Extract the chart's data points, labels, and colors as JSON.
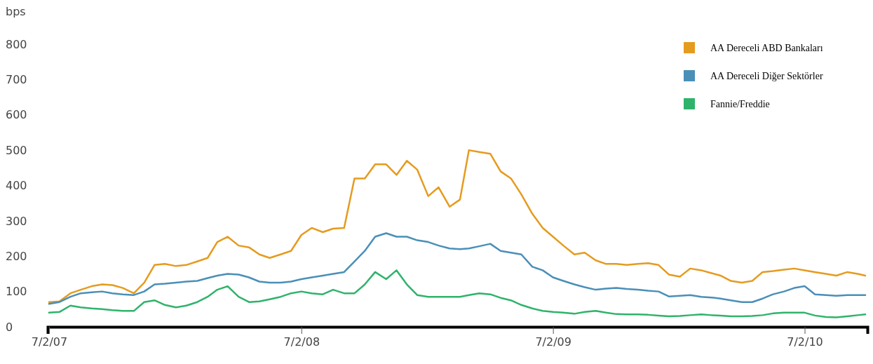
{
  "chart_data": {
    "type": "line",
    "ylabel": "bps",
    "x": [
      "2007-07-02",
      "2007-07-17",
      "2007-08-02",
      "2007-08-17",
      "2007-09-02",
      "2007-09-17",
      "2007-10-02",
      "2007-10-17",
      "2007-11-02",
      "2007-11-17",
      "2007-12-02",
      "2007-12-17",
      "2008-01-02",
      "2008-01-17",
      "2008-02-02",
      "2008-02-17",
      "2008-03-02",
      "2008-03-17",
      "2008-04-02",
      "2008-04-17",
      "2008-05-02",
      "2008-05-17",
      "2008-06-02",
      "2008-06-17",
      "2008-07-02",
      "2008-07-17",
      "2008-08-02",
      "2008-08-17",
      "2008-09-02",
      "2008-09-17",
      "2008-10-02",
      "2008-10-17",
      "2008-11-02",
      "2008-11-17",
      "2008-12-02",
      "2008-12-17",
      "2009-01-02",
      "2009-01-17",
      "2009-02-02",
      "2009-02-17",
      "2009-03-02",
      "2009-03-17",
      "2009-04-02",
      "2009-04-17",
      "2009-05-02",
      "2009-05-17",
      "2009-06-02",
      "2009-06-17",
      "2009-07-02",
      "2009-07-17",
      "2009-08-02",
      "2009-08-17",
      "2009-09-02",
      "2009-09-17",
      "2009-10-02",
      "2009-10-17",
      "2009-11-02",
      "2009-11-17",
      "2009-12-02",
      "2009-12-17",
      "2010-01-02",
      "2010-01-17",
      "2010-02-02",
      "2010-02-17",
      "2010-03-02",
      "2010-03-17",
      "2010-04-02",
      "2010-04-17",
      "2010-05-02",
      "2010-05-17",
      "2010-06-02",
      "2010-06-17",
      "2010-07-02",
      "2010-07-17",
      "2010-08-02",
      "2010-08-17",
      "2010-09-02",
      "2010-09-17",
      "2010-09-28"
    ],
    "series": [
      {
        "name": "AA Dereceli ABD Bankaları",
        "color": "#e59b1e",
        "values": [
          70,
          72,
          95,
          105,
          115,
          120,
          118,
          110,
          95,
          125,
          175,
          178,
          172,
          175,
          185,
          195,
          240,
          255,
          230,
          225,
          205,
          195,
          205,
          215,
          260,
          280,
          268,
          278,
          280,
          420,
          420,
          460,
          460,
          430,
          470,
          445,
          370,
          395,
          340,
          360,
          500,
          495,
          490,
          440,
          420,
          375,
          320,
          280,
          255,
          230,
          205,
          210,
          188,
          178,
          178,
          175,
          178,
          180,
          175,
          148,
          142,
          165,
          160,
          152,
          145,
          130,
          125,
          130,
          155,
          158,
          162,
          165,
          160,
          155,
          150,
          145,
          155,
          150,
          145
        ]
      },
      {
        "name": "AA Dereceli Diğer Sektörler",
        "color": "#4a8fb8",
        "values": [
          65,
          70,
          85,
          95,
          98,
          100,
          95,
          92,
          90,
          100,
          120,
          122,
          125,
          128,
          130,
          138,
          145,
          150,
          148,
          140,
          128,
          125,
          125,
          128,
          135,
          140,
          145,
          150,
          155,
          185,
          215,
          255,
          265,
          255,
          255,
          245,
          240,
          230,
          222,
          220,
          222,
          228,
          235,
          215,
          210,
          205,
          170,
          160,
          140,
          130,
          120,
          112,
          105,
          108,
          110,
          107,
          105,
          102,
          100,
          86,
          88,
          90,
          85,
          83,
          80,
          75,
          70,
          70,
          80,
          92,
          100,
          110,
          115,
          92,
          90,
          88,
          90,
          90,
          90
        ]
      },
      {
        "name": "Fannie/Freddie",
        "color": "#2fb36b",
        "values": [
          40,
          42,
          60,
          55,
          52,
          50,
          47,
          45,
          45,
          70,
          75,
          62,
          55,
          60,
          70,
          85,
          105,
          115,
          85,
          70,
          72,
          78,
          85,
          95,
          100,
          95,
          92,
          105,
          95,
          95,
          120,
          155,
          135,
          160,
          120,
          90,
          85,
          85,
          85,
          85,
          90,
          95,
          92,
          82,
          75,
          62,
          52,
          45,
          42,
          40,
          37,
          42,
          45,
          40,
          36,
          35,
          35,
          34,
          32,
          30,
          31,
          33,
          35,
          33,
          32,
          30,
          30,
          31,
          33,
          38,
          40,
          40,
          40,
          32,
          28,
          27,
          30,
          33,
          35
        ]
      }
    ],
    "xlim": [
      "2007-06-30",
      "2010-10-01"
    ],
    "xticks": [
      {
        "value": "2007-07-02",
        "label": "7/2/07"
      },
      {
        "value": "2008-07-02",
        "label": "7/2/08"
      },
      {
        "value": "2009-07-02",
        "label": "7/2/09"
      },
      {
        "value": "2010-07-02",
        "label": "7/2/10"
      }
    ],
    "ylim": [
      0,
      800
    ],
    "yticks": [
      0,
      100,
      200,
      300,
      400,
      500,
      600,
      700,
      800
    ],
    "grid": false,
    "legend": "top right",
    "line_style": "solid"
  }
}
